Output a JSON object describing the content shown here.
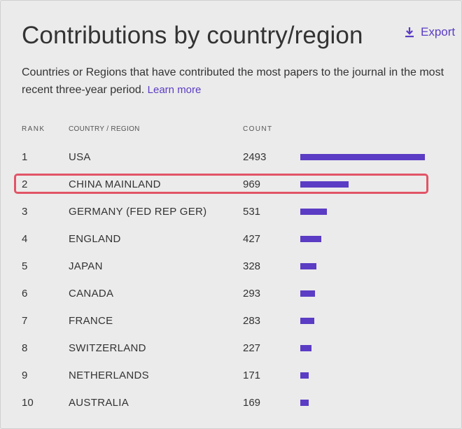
{
  "page": {
    "title": "Contributions by country/region",
    "export_label": "Export",
    "description": "Countries or Regions that have contributed the most papers to the journal in the most recent three-year period.",
    "learn_more_label": "Learn more",
    "accent_color": "#5b3cc4",
    "highlight_color": "#e25466",
    "highlighted_rank": "2"
  },
  "table": {
    "headers": {
      "rank": "RANK",
      "country": "COUNTRY / REGION",
      "count": "COUNT"
    },
    "max_count": 2493,
    "rows": [
      {
        "rank": "1",
        "country": "USA",
        "count": "2493",
        "value": 2493
      },
      {
        "rank": "2",
        "country": "CHINA MAINLAND",
        "count": "969",
        "value": 969
      },
      {
        "rank": "3",
        "country": "GERMANY (FED REP GER)",
        "count": "531",
        "value": 531
      },
      {
        "rank": "4",
        "country": "ENGLAND",
        "count": "427",
        "value": 427
      },
      {
        "rank": "5",
        "country": "JAPAN",
        "count": "328",
        "value": 328
      },
      {
        "rank": "6",
        "country": "CANADA",
        "count": "293",
        "value": 293
      },
      {
        "rank": "7",
        "country": "FRANCE",
        "count": "283",
        "value": 283
      },
      {
        "rank": "8",
        "country": "SWITZERLAND",
        "count": "227",
        "value": 227
      },
      {
        "rank": "9",
        "country": "NETHERLANDS",
        "count": "171",
        "value": 171
      },
      {
        "rank": "10",
        "country": "AUSTRALIA",
        "count": "169",
        "value": 169
      }
    ]
  }
}
